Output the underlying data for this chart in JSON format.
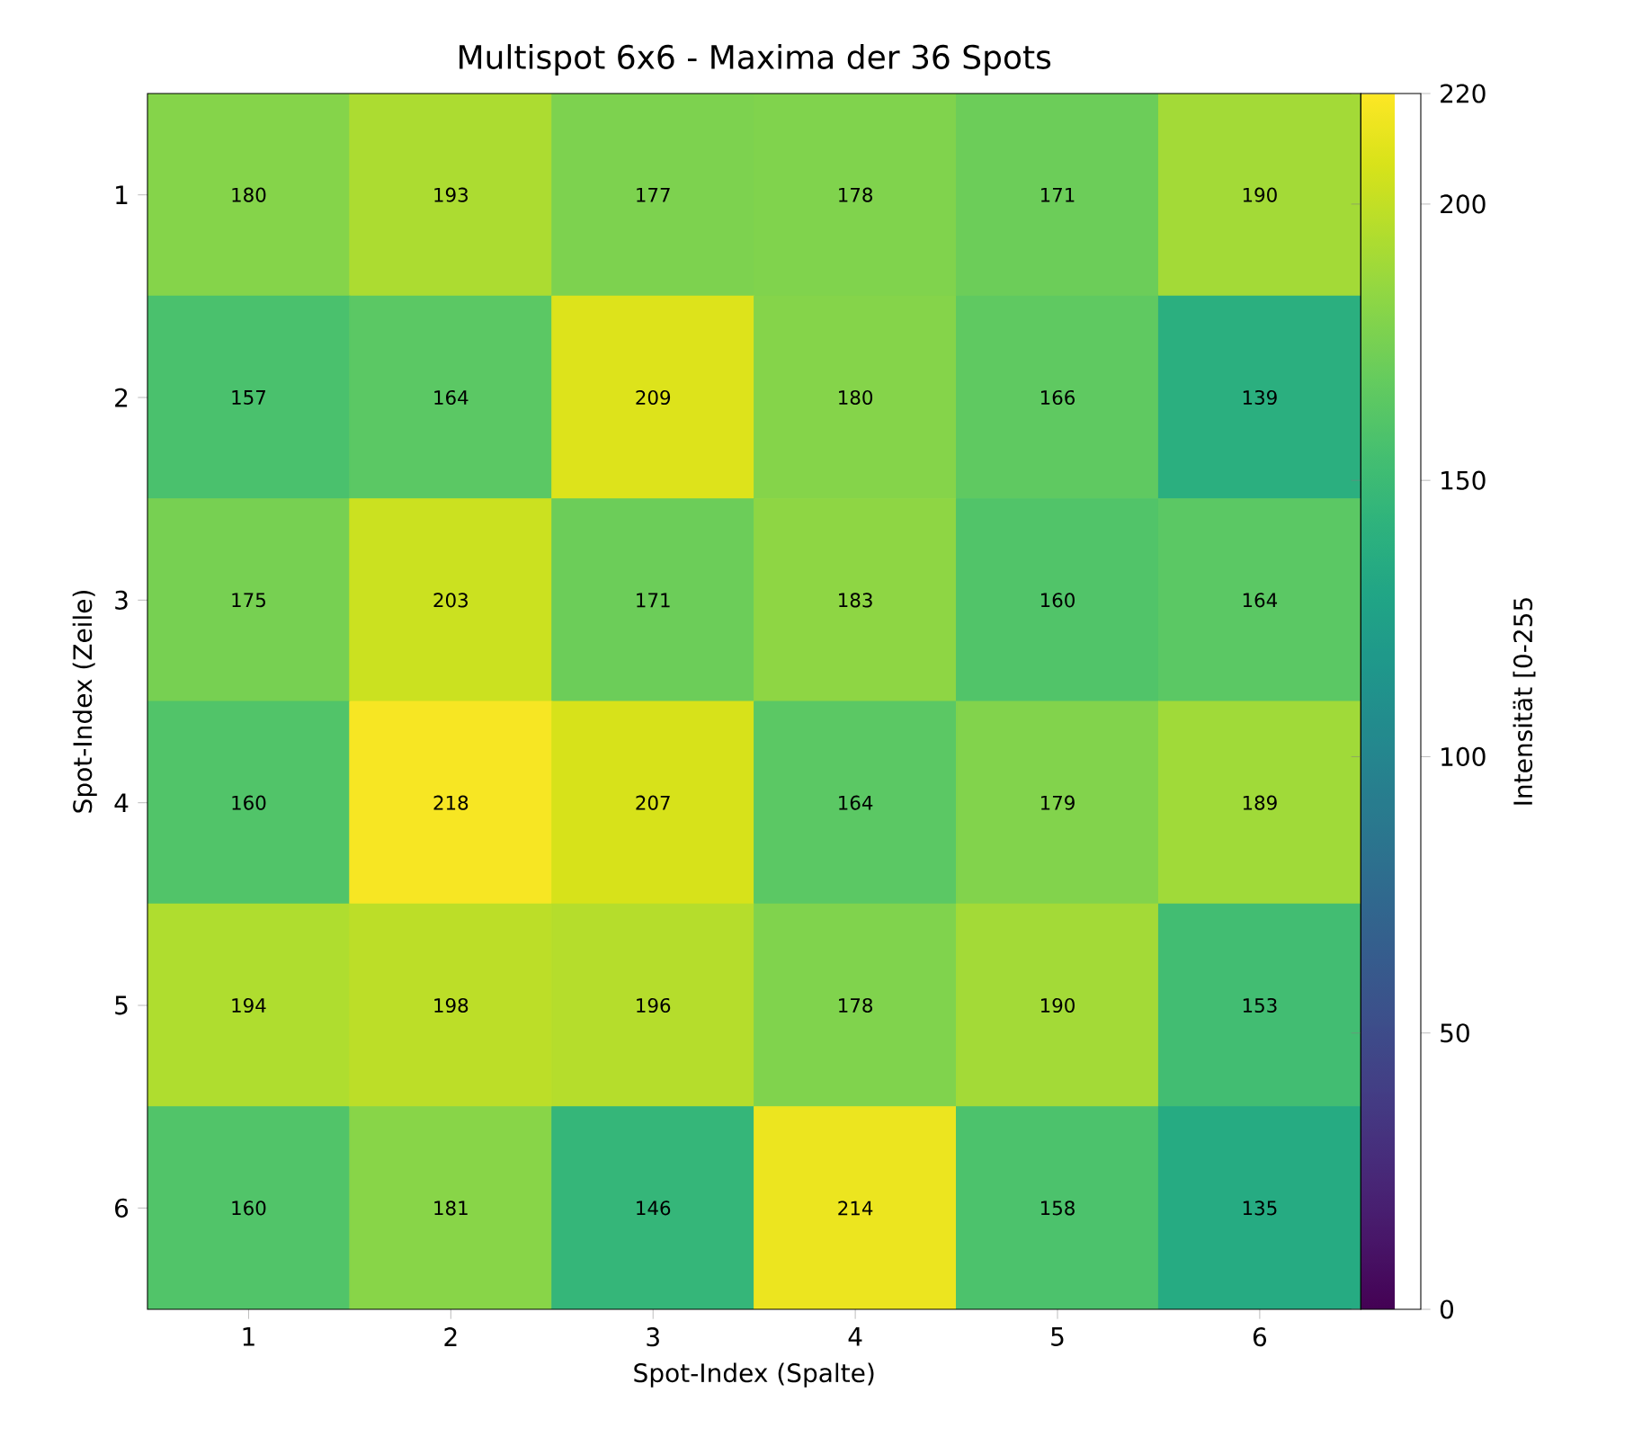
{
  "chart_data": {
    "type": "heatmap",
    "title": "Multispot 6x6 - Maxima der 36 Spots",
    "xlabel": "Spot-Index (Spalte)",
    "ylabel": "Spot-Index (Zeile)",
    "clabel": "Intensität [0-255",
    "categories": [
      "1",
      "2",
      "3",
      "4",
      "5",
      "6"
    ],
    "y_categories": [
      "1",
      "2",
      "3",
      "4",
      "5",
      "6"
    ],
    "cells": [
      [
        180,
        193,
        177,
        178,
        171,
        190
      ],
      [
        157,
        164,
        209,
        180,
        166,
        139
      ],
      [
        175,
        203,
        171,
        183,
        160,
        164
      ],
      [
        160,
        218,
        207,
        164,
        179,
        189
      ],
      [
        194,
        198,
        196,
        178,
        190,
        153
      ],
      [
        160,
        181,
        146,
        214,
        158,
        135
      ]
    ],
    "clim": [
      0,
      220
    ],
    "cticks": [
      0,
      50,
      100,
      150,
      200,
      220
    ],
    "data_labels": true
  }
}
